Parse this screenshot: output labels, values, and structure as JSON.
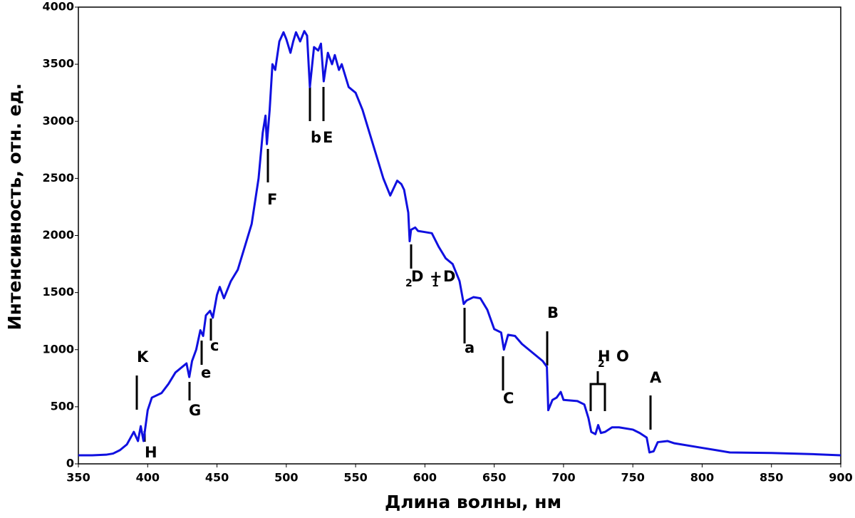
{
  "chart_data": {
    "type": "line",
    "xlabel": "Длина волны, нм",
    "ylabel": "Интенсивность, отн. ед.",
    "xlim": [
      350,
      900
    ],
    "ylim": [
      0,
      4000
    ],
    "xticks": [
      350,
      400,
      450,
      500,
      550,
      600,
      650,
      700,
      750,
      800,
      850,
      900
    ],
    "yticks": [
      0,
      500,
      1000,
      1500,
      2000,
      2500,
      3000,
      3500,
      4000
    ],
    "x": [
      350,
      360,
      370,
      375,
      380,
      385,
      390,
      393,
      395,
      397,
      400,
      403,
      410,
      415,
      420,
      425,
      428,
      430,
      432,
      435,
      438,
      440,
      442,
      445,
      447,
      450,
      452,
      455,
      460,
      465,
      470,
      475,
      480,
      483,
      485,
      486,
      488,
      490,
      492,
      495,
      498,
      500,
      503,
      505,
      507,
      510,
      513,
      515,
      517,
      520,
      523,
      525,
      527,
      530,
      533,
      535,
      538,
      540,
      545,
      550,
      555,
      560,
      565,
      570,
      575,
      580,
      583,
      585,
      588,
      589,
      590,
      593,
      595,
      600,
      605,
      610,
      615,
      620,
      625,
      628,
      630,
      635,
      640,
      645,
      650,
      655,
      657,
      660,
      665,
      670,
      680,
      685,
      688,
      689,
      692,
      695,
      698,
      700,
      710,
      715,
      718,
      720,
      723,
      725,
      727,
      730,
      735,
      740,
      750,
      755,
      760,
      762,
      765,
      768,
      775,
      780,
      800,
      810,
      820,
      850,
      880,
      900
    ],
    "series": [
      {
        "color": "#1010e0",
        "values": [
          75,
          75,
          80,
          90,
          120,
          170,
          280,
          200,
          330,
          200,
          470,
          580,
          620,
          700,
          800,
          850,
          880,
          760,
          900,
          1000,
          1170,
          1120,
          1300,
          1340,
          1280,
          1480,
          1550,
          1450,
          1600,
          1700,
          1900,
          2100,
          2500,
          2900,
          3050,
          2800,
          3100,
          3500,
          3450,
          3700,
          3780,
          3720,
          3600,
          3700,
          3780,
          3700,
          3790,
          3750,
          3300,
          3650,
          3620,
          3680,
          3350,
          3600,
          3500,
          3580,
          3450,
          3500,
          3300,
          3250,
          3100,
          2900,
          2700,
          2500,
          2350,
          2480,
          2450,
          2400,
          2200,
          1950,
          2050,
          2070,
          2040,
          2030,
          2020,
          1900,
          1800,
          1750,
          1600,
          1400,
          1430,
          1460,
          1450,
          1350,
          1180,
          1150,
          1000,
          1130,
          1120,
          1050,
          950,
          900,
          850,
          470,
          560,
          580,
          630,
          560,
          550,
          520,
          400,
          280,
          260,
          340,
          270,
          280,
          320,
          320,
          300,
          270,
          230,
          100,
          110,
          190,
          200,
          180,
          140,
          120,
          100,
          95,
          85,
          75
        ]
      }
    ],
    "annotations": [
      "K",
      "H",
      "G",
      "e",
      "c",
      "F",
      "b",
      "E",
      "2",
      "D",
      "+",
      "1",
      "D",
      "a",
      "C",
      "B",
      "H",
      "2",
      "O",
      "A"
    ]
  }
}
